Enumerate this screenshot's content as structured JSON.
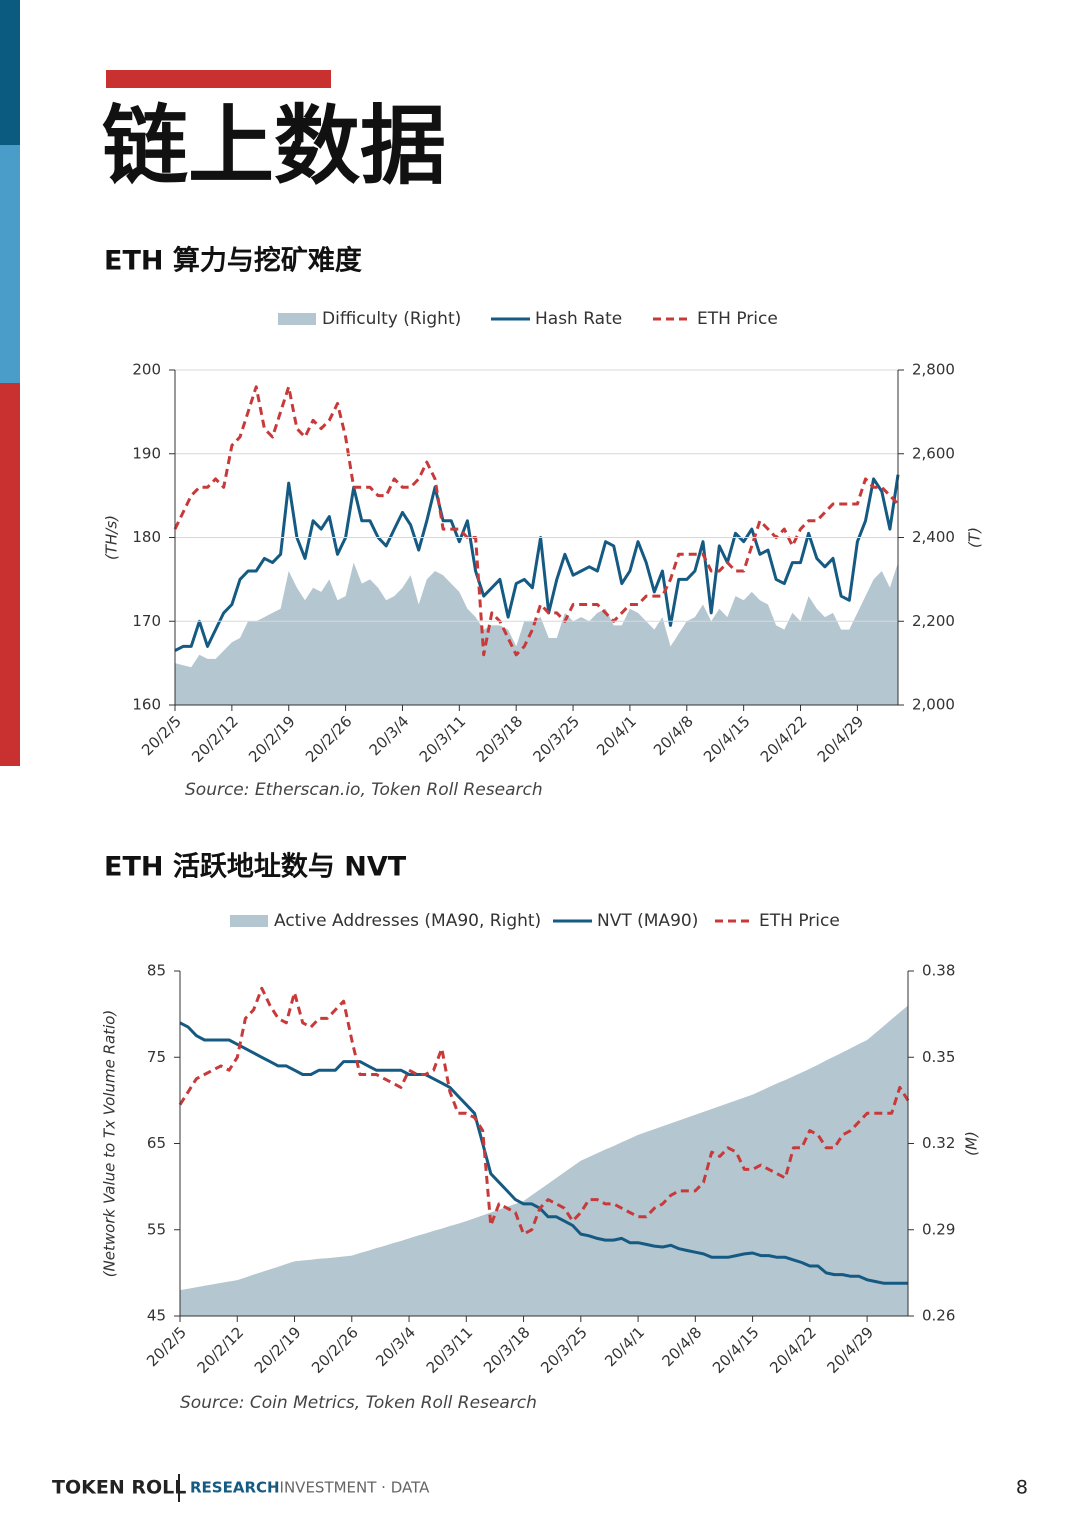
{
  "page": {
    "title": "链上数据",
    "footer": {
      "brand": "TOKEN ROLL",
      "tagline_main": "RESEARCH",
      "tagline_rest": "· INVESTMENT · DATA",
      "page_number": 8
    }
  },
  "chart_data": [
    {
      "type": "line",
      "title": "ETH 算力与挖矿难度",
      "source": "Source: Etherscan.io, Token Roll Research",
      "ylabel": "(TH/s)",
      "y2label": "(T)",
      "categories": [
        "20/2/5",
        null,
        null,
        null,
        null,
        null,
        null,
        "20/2/12",
        null,
        null,
        null,
        null,
        null,
        null,
        "20/2/19",
        null,
        null,
        null,
        null,
        null,
        null,
        "20/2/26",
        null,
        null,
        null,
        null,
        null,
        null,
        "20/3/4",
        null,
        null,
        null,
        null,
        null,
        null,
        "20/3/11",
        null,
        null,
        null,
        null,
        null,
        null,
        "20/3/18",
        null,
        null,
        null,
        null,
        null,
        null,
        "20/3/25",
        null,
        null,
        null,
        null,
        null,
        null,
        "20/4/1",
        null,
        null,
        null,
        null,
        null,
        null,
        "20/4/8",
        null,
        null,
        null,
        null,
        null,
        null,
        "20/4/15",
        null,
        null,
        null,
        null,
        null,
        null,
        "20/4/22",
        null,
        null,
        null,
        null,
        null,
        null,
        "20/4/29",
        null,
        null,
        null,
        null,
        null
      ],
      "series": [
        {
          "name": "Difficulty (Right)",
          "color": "#b4c6cf",
          "style": "area",
          "axis": "y2",
          "values": [
            2100,
            2095,
            2090,
            2120,
            2110,
            2110,
            2130,
            2150,
            2160,
            2200,
            2200,
            2210,
            2220,
            2230,
            2320,
            2280,
            2250,
            2280,
            2270,
            2300,
            2250,
            2260,
            2340,
            2290,
            2300,
            2280,
            2250,
            2260,
            2280,
            2310,
            2240,
            2300,
            2320,
            2310,
            2290,
            2270,
            2230,
            2210,
            2180,
            2190,
            2190,
            2180,
            2140,
            2200,
            2200,
            2210,
            2160,
            2160,
            2220,
            2200,
            2210,
            2200,
            2220,
            2230,
            2190,
            2190,
            2230,
            2220,
            2200,
            2180,
            2210,
            2140,
            2170,
            2200,
            2210,
            2240,
            2200,
            2230,
            2210,
            2260,
            2250,
            2270,
            2250,
            2240,
            2190,
            2180,
            2220,
            2200,
            2260,
            2230,
            2210,
            2220,
            2180,
            2180,
            2220,
            2260,
            2300,
            2320,
            2280,
            2340
          ]
        },
        {
          "name": "Hash Rate",
          "color": "#155a82",
          "style": "solid",
          "values": [
            166.5,
            167,
            167,
            170,
            167,
            169,
            171,
            172,
            175,
            176,
            176,
            177.5,
            177,
            178,
            186.5,
            180,
            177.5,
            182,
            181,
            182.5,
            178,
            180,
            186,
            182,
            182,
            180,
            179,
            181,
            183,
            181.5,
            178.5,
            182,
            186,
            182,
            182,
            179.5,
            182,
            176,
            173,
            174,
            175,
            170.5,
            174.5,
            175,
            174,
            180,
            171,
            175,
            178,
            175.5,
            176,
            176.5,
            176,
            179.5,
            179,
            174.5,
            176,
            179.5,
            177,
            173.5,
            176,
            169.5,
            175,
            175,
            176,
            179.5,
            171,
            179,
            177,
            180.5,
            179.5,
            181,
            178,
            178.5,
            175,
            174.5,
            177,
            177,
            180.5,
            177.5,
            176.5,
            177.5,
            173,
            172.5,
            179.5,
            182,
            187,
            185.5,
            181,
            187.5
          ]
        },
        {
          "name": "ETH Price",
          "color": "#c83a3a",
          "style": "dashed",
          "values": [
            181,
            183,
            185,
            186,
            186,
            187,
            186,
            191,
            192,
            195,
            198,
            193,
            192,
            195,
            198,
            193,
            192,
            194,
            193,
            194,
            196,
            192,
            186,
            186,
            186,
            185,
            185,
            187,
            186,
            186,
            187,
            189,
            187,
            181,
            181,
            181,
            180,
            180,
            166,
            171,
            170,
            168,
            166,
            167,
            169,
            172,
            171,
            171,
            170,
            172,
            172,
            172,
            172,
            171,
            170,
            171,
            172,
            172,
            173,
            173,
            173,
            175,
            178,
            178,
            178,
            178,
            176,
            176,
            177,
            176,
            176,
            179,
            182,
            181,
            180,
            181,
            179,
            181,
            182,
            182,
            183,
            184,
            184,
            184,
            184,
            187,
            186,
            186,
            185,
            184
          ]
        }
      ],
      "ylim": [
        160,
        200
      ],
      "yticks": [
        160,
        170,
        180,
        190,
        200
      ],
      "y2lim": [
        2000,
        2800
      ],
      "y2ticks": [
        {
          "value": 2000,
          "label": "2,000"
        },
        {
          "value": 2200,
          "label": "2,200"
        },
        {
          "value": 2400,
          "label": "2,400"
        },
        {
          "value": 2600,
          "label": "2,600"
        },
        {
          "value": 2800,
          "label": "2,800"
        }
      ],
      "grid": true
    },
    {
      "type": "line",
      "title": "ETH 活跃地址数与 NVT",
      "source": "Source: Coin Metrics, Token Roll Research",
      "ylabel": "(Network Value to Tx Volume Ratio)",
      "y2label": "(M)",
      "categories": [
        "20/2/5",
        null,
        null,
        null,
        null,
        null,
        null,
        "20/2/12",
        null,
        null,
        null,
        null,
        null,
        null,
        "20/2/19",
        null,
        null,
        null,
        null,
        null,
        null,
        "20/2/26",
        null,
        null,
        null,
        null,
        null,
        null,
        "20/3/4",
        null,
        null,
        null,
        null,
        null,
        null,
        "20/3/11",
        null,
        null,
        null,
        null,
        null,
        null,
        "20/3/18",
        null,
        null,
        null,
        null,
        null,
        null,
        "20/3/25",
        null,
        null,
        null,
        null,
        null,
        null,
        "20/4/1",
        null,
        null,
        null,
        null,
        null,
        null,
        "20/4/8",
        null,
        null,
        null,
        null,
        null,
        null,
        "20/4/15",
        null,
        null,
        null,
        null,
        null,
        null,
        "20/4/22",
        null,
        null,
        null,
        null,
        null,
        null,
        "20/4/29",
        null,
        null,
        null,
        null,
        null
      ],
      "series": [
        {
          "name": "Active Addresses (MA90, Right)",
          "color": "#b4c6cf",
          "style": "area",
          "axis": "y2",
          "values": [
            0.269,
            0.2695,
            0.27,
            0.2705,
            0.271,
            0.2715,
            0.272,
            0.2725,
            0.2734,
            0.2744,
            0.2753,
            0.2762,
            0.2771,
            0.2781,
            0.279,
            0.2793,
            0.2796,
            0.2799,
            0.2801,
            0.2804,
            0.2807,
            0.281,
            0.2819,
            0.2827,
            0.2836,
            0.2844,
            0.2853,
            0.2861,
            0.287,
            0.2879,
            0.2887,
            0.2896,
            0.2904,
            0.2913,
            0.2921,
            0.293,
            0.294,
            0.295,
            0.296,
            0.297,
            0.298,
            0.299,
            0.3,
            0.302,
            0.304,
            0.306,
            0.308,
            0.31,
            0.312,
            0.314,
            0.3153,
            0.3166,
            0.3179,
            0.3191,
            0.3204,
            0.3217,
            0.323,
            0.324,
            0.325,
            0.326,
            0.327,
            0.328,
            0.329,
            0.33,
            0.331,
            0.332,
            0.333,
            0.334,
            0.335,
            0.336,
            0.337,
            0.3383,
            0.3396,
            0.3409,
            0.3421,
            0.3434,
            0.3447,
            0.346,
            0.3474,
            0.3489,
            0.3503,
            0.3517,
            0.3531,
            0.3546,
            0.356,
            0.3584,
            0.3608,
            0.3632,
            0.3656,
            0.368
          ]
        },
        {
          "name": "NVT (MA90)",
          "color": "#155a82",
          "style": "solid",
          "values": [
            79,
            78.5,
            77.5,
            77,
            77,
            77,
            77,
            76.5,
            76,
            75.5,
            75,
            74.5,
            74,
            74,
            73.5,
            73,
            73,
            73.5,
            73.5,
            73.5,
            74.5,
            74.5,
            74.5,
            74,
            73.5,
            73.5,
            73.5,
            73.5,
            73,
            73,
            73,
            72.5,
            72,
            71.5,
            70.5,
            69.5,
            68.5,
            65,
            61.5,
            60.5,
            59.5,
            58.5,
            58,
            58,
            57.5,
            56.5,
            56.5,
            56,
            55.5,
            54.5,
            54.3,
            54,
            53.8,
            53.8,
            54,
            53.5,
            53.5,
            53.3,
            53.1,
            53,
            53.2,
            52.8,
            52.6,
            52.4,
            52.2,
            51.8,
            51.8,
            51.8,
            52,
            52.2,
            52.3,
            52,
            52,
            51.8,
            51.8,
            51.5,
            51.2,
            50.8,
            50.8,
            50,
            49.8,
            49.8,
            49.6,
            49.6,
            49.2,
            49,
            48.8,
            48.8,
            48.8,
            48.8
          ]
        },
        {
          "name": "ETH Price",
          "color": "#c83a3a",
          "style": "dashed",
          "values": [
            69.5,
            71,
            72.5,
            73,
            73.5,
            74,
            73.5,
            75,
            79.5,
            80.5,
            83,
            81,
            79.5,
            79,
            82.5,
            79,
            78.5,
            79.5,
            79.5,
            80.5,
            81.5,
            77,
            73,
            73,
            73,
            72.5,
            72,
            71.5,
            73.5,
            73,
            73,
            73.5,
            76,
            71,
            68.5,
            68.5,
            68,
            66.5,
            55.5,
            58,
            57.5,
            57,
            54.5,
            55,
            57.5,
            58.5,
            58,
            57.5,
            56,
            57,
            58.5,
            58.5,
            58,
            58,
            57.5,
            57,
            56.5,
            56.5,
            57.5,
            58,
            59,
            59.5,
            59.5,
            59.5,
            60.5,
            64,
            63.5,
            64.5,
            64,
            62,
            62,
            62.5,
            62,
            61.5,
            61,
            64.5,
            64.5,
            66.5,
            66,
            64.5,
            64.5,
            66,
            66.5,
            67.5,
            68.5,
            68.5,
            68.5,
            68.5,
            71.5,
            70
          ]
        }
      ],
      "ylim": [
        45,
        85
      ],
      "yticks": [
        45,
        55,
        65,
        75,
        85
      ],
      "y2lim": [
        0.26,
        0.38
      ],
      "y2ticks": [
        0.26,
        0.29,
        0.32,
        0.35,
        0.38
      ],
      "grid": false
    }
  ]
}
